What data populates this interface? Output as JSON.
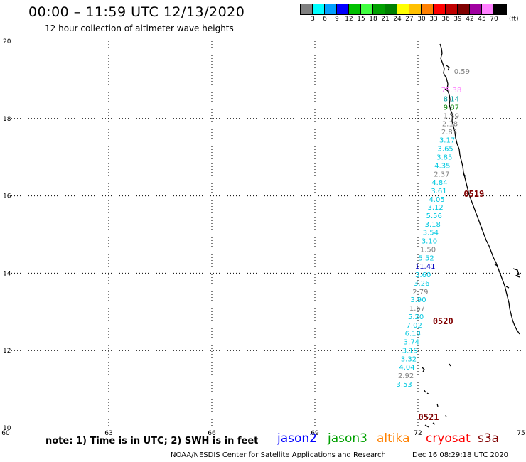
{
  "header": {
    "title": "00:00 – 11:59 UTC 12/13/2020",
    "subtitle": "12 hour collection of altimeter wave heights"
  },
  "scale": {
    "colors": [
      "#808080",
      "#00ffff",
      "#00a0ff",
      "#0000ff",
      "#00c000",
      "#40ff40",
      "#00a000",
      "#008000",
      "#ffff00",
      "#ffc000",
      "#ff8000",
      "#ff0000",
      "#c00000",
      "#800000",
      "#a000a0",
      "#ff80ff",
      "#000000"
    ],
    "labels": [
      "3",
      "6",
      "9",
      "12",
      "15",
      "18",
      "21",
      "24",
      "27",
      "30",
      "33",
      "36",
      "39",
      "42",
      "45",
      "70"
    ],
    "unit": "(ft)"
  },
  "map": {
    "lon_min": 60,
    "lon_max": 75,
    "lat_min": 10,
    "lat_max": 20,
    "x_ticks": [
      "60",
      "63",
      "66",
      "69",
      "72",
      "75"
    ],
    "y_ticks": [
      "10",
      "12",
      "14",
      "16",
      "18",
      "20"
    ],
    "measurements": [
      {
        "lon": 73.28,
        "lat": 19.15,
        "value": "0.59",
        "color": "#808080"
      },
      {
        "lon": 72.97,
        "lat": 18.68,
        "value": "75.38",
        "color": "#ff80ff"
      },
      {
        "lon": 72.97,
        "lat": 18.45,
        "value": "8.14",
        "color": "#00a0a0"
      },
      {
        "lon": 72.97,
        "lat": 18.23,
        "value": "9.87",
        "color": "#008000"
      },
      {
        "lon": 72.97,
        "lat": 18.01,
        "value": "1.59",
        "color": "#808080"
      },
      {
        "lon": 72.93,
        "lat": 17.8,
        "value": "2.18",
        "color": "#808080"
      },
      {
        "lon": 72.91,
        "lat": 17.59,
        "value": "2.83",
        "color": "#808080"
      },
      {
        "lon": 72.85,
        "lat": 17.38,
        "value": "3.17",
        "color": "#00c8e0"
      },
      {
        "lon": 72.8,
        "lat": 17.16,
        "value": "3.65",
        "color": "#00c8e0"
      },
      {
        "lon": 72.77,
        "lat": 16.94,
        "value": "3.85",
        "color": "#00c8e0"
      },
      {
        "lon": 72.71,
        "lat": 16.72,
        "value": "4.35",
        "color": "#00c8e0"
      },
      {
        "lon": 72.69,
        "lat": 16.5,
        "value": "2.37",
        "color": "#808080"
      },
      {
        "lon": 72.63,
        "lat": 16.29,
        "value": "4.84",
        "color": "#00c8e0"
      },
      {
        "lon": 72.61,
        "lat": 16.07,
        "value": "3.61",
        "color": "#00c8e0"
      },
      {
        "lon": 72.55,
        "lat": 15.85,
        "value": "4.05",
        "color": "#00c8e0"
      },
      {
        "lon": 72.51,
        "lat": 15.64,
        "value": "3.12",
        "color": "#00c8e0"
      },
      {
        "lon": 72.47,
        "lat": 15.42,
        "value": "5.56",
        "color": "#00c8e0"
      },
      {
        "lon": 72.43,
        "lat": 15.2,
        "value": "3.18",
        "color": "#00c8e0"
      },
      {
        "lon": 72.37,
        "lat": 14.99,
        "value": "3.54",
        "color": "#00c8e0"
      },
      {
        "lon": 72.33,
        "lat": 14.77,
        "value": "3.10",
        "color": "#00c8e0"
      },
      {
        "lon": 72.29,
        "lat": 14.55,
        "value": "1.50",
        "color": "#808080"
      },
      {
        "lon": 72.24,
        "lat": 14.33,
        "value": "5.52",
        "color": "#00c8e0"
      },
      {
        "lon": 72.21,
        "lat": 14.12,
        "value": "11.41",
        "color": "#0000c0"
      },
      {
        "lon": 72.15,
        "lat": 13.9,
        "value": "3.60",
        "color": "#00c8e0"
      },
      {
        "lon": 72.11,
        "lat": 13.68,
        "value": "3.26",
        "color": "#00c8e0"
      },
      {
        "lon": 72.07,
        "lat": 13.46,
        "value": "2.79",
        "color": "#808080"
      },
      {
        "lon": 72.01,
        "lat": 13.25,
        "value": "3.90",
        "color": "#00c8e0"
      },
      {
        "lon": 71.98,
        "lat": 13.03,
        "value": "1.67",
        "color": "#808080"
      },
      {
        "lon": 71.94,
        "lat": 12.81,
        "value": "5.20",
        "color": "#00c8e0"
      },
      {
        "lon": 71.89,
        "lat": 12.59,
        "value": "7.02",
        "color": "#00c8e0"
      },
      {
        "lon": 71.85,
        "lat": 12.38,
        "value": "6.18",
        "color": "#00c8e0"
      },
      {
        "lon": 71.81,
        "lat": 12.16,
        "value": "3.74",
        "color": "#00c8e0"
      },
      {
        "lon": 71.77,
        "lat": 11.94,
        "value": "3.19",
        "color": "#00c8e0"
      },
      {
        "lon": 71.73,
        "lat": 11.72,
        "value": "3.32",
        "color": "#00c8e0"
      },
      {
        "lon": 71.68,
        "lat": 11.51,
        "value": "4.04",
        "color": "#00c8e0"
      },
      {
        "lon": 71.65,
        "lat": 11.29,
        "value": "2.92",
        "color": "#808080"
      },
      {
        "lon": 71.6,
        "lat": 11.07,
        "value": "3.53",
        "color": "#00c8e0"
      }
    ],
    "cycle_labels": [
      {
        "lon": 73.63,
        "lat": 15.97,
        "text": "0519"
      },
      {
        "lon": 72.73,
        "lat": 12.68,
        "text": "0520"
      },
      {
        "lon": 72.31,
        "lat": 10.2,
        "text": "0521"
      }
    ],
    "cycle_color": "#800000"
  },
  "footer": {
    "note": "note: 1) Time is in UTC; 2) SWH is in feet",
    "legend": [
      {
        "label": "jason2",
        "color": "#0000ff"
      },
      {
        "label": "jason3",
        "color": "#00a000"
      },
      {
        "label": "altika",
        "color": "#ff8000"
      },
      {
        "label": "cryosat",
        "color": "#ff0000"
      },
      {
        "label": "s3a",
        "color": "#800000"
      }
    ],
    "credit": "NOAA/NESDIS Center for Satellite Applications and Research",
    "timestamp": "Dec 16 08:29:18 UTC 2020"
  }
}
